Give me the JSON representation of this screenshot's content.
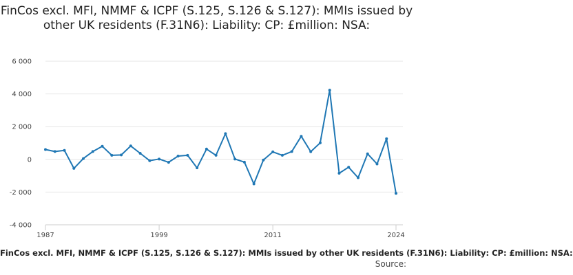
{
  "chart_data": {
    "type": "line",
    "title": "FinCos excl. MFI, NMMF & ICPF (S.125, S.126 & S.127): MMIs issued by other UK residents (F.31N6): Liability: CP: £million: NSA:",
    "xlabel": "FinCos excl. MFI, NMMF & ICPF (S.125, S.126 & S.127): MMIs issued by other UK residents (F.31N6): Liability: CP: £million: NSA:",
    "ylabel": "",
    "source_label": "Source:",
    "xlim": [
      1987,
      2024
    ],
    "ylim": [
      -4000,
      6000
    ],
    "x_ticks": [
      1987,
      1999,
      2011,
      2024
    ],
    "x_tick_labels": [
      "1987",
      "1999",
      "2011",
      "2024"
    ],
    "y_ticks": [
      -4000,
      -2000,
      0,
      2000,
      4000,
      6000
    ],
    "y_tick_labels": [
      "-4 000",
      "-2 000",
      "0",
      "2 000",
      "4 000",
      "6 000"
    ],
    "grid": "horizontal",
    "line_color": "#1f77b4",
    "series": [
      {
        "x": [
          1987,
          1988,
          1989,
          1990,
          1991,
          1992,
          1993,
          1994,
          1995,
          1996,
          1997,
          1998,
          1999,
          2000,
          2001,
          2002,
          2003,
          2004,
          2005,
          2006,
          2007,
          2008,
          2009,
          2010,
          2011,
          2012,
          2013,
          2014,
          2015,
          2016,
          2017,
          2018,
          2019,
          2020,
          2021,
          2022,
          2023,
          2024
        ],
        "values": [
          600,
          480,
          550,
          -550,
          50,
          480,
          800,
          250,
          270,
          820,
          370,
          -80,
          20,
          -180,
          200,
          250,
          -520,
          630,
          250,
          1570,
          20,
          -170,
          -1500,
          -40,
          460,
          250,
          480,
          1410,
          470,
          1010,
          4230,
          -850,
          -480,
          -1120,
          340,
          -280,
          1260,
          -2080
        ]
      }
    ]
  }
}
